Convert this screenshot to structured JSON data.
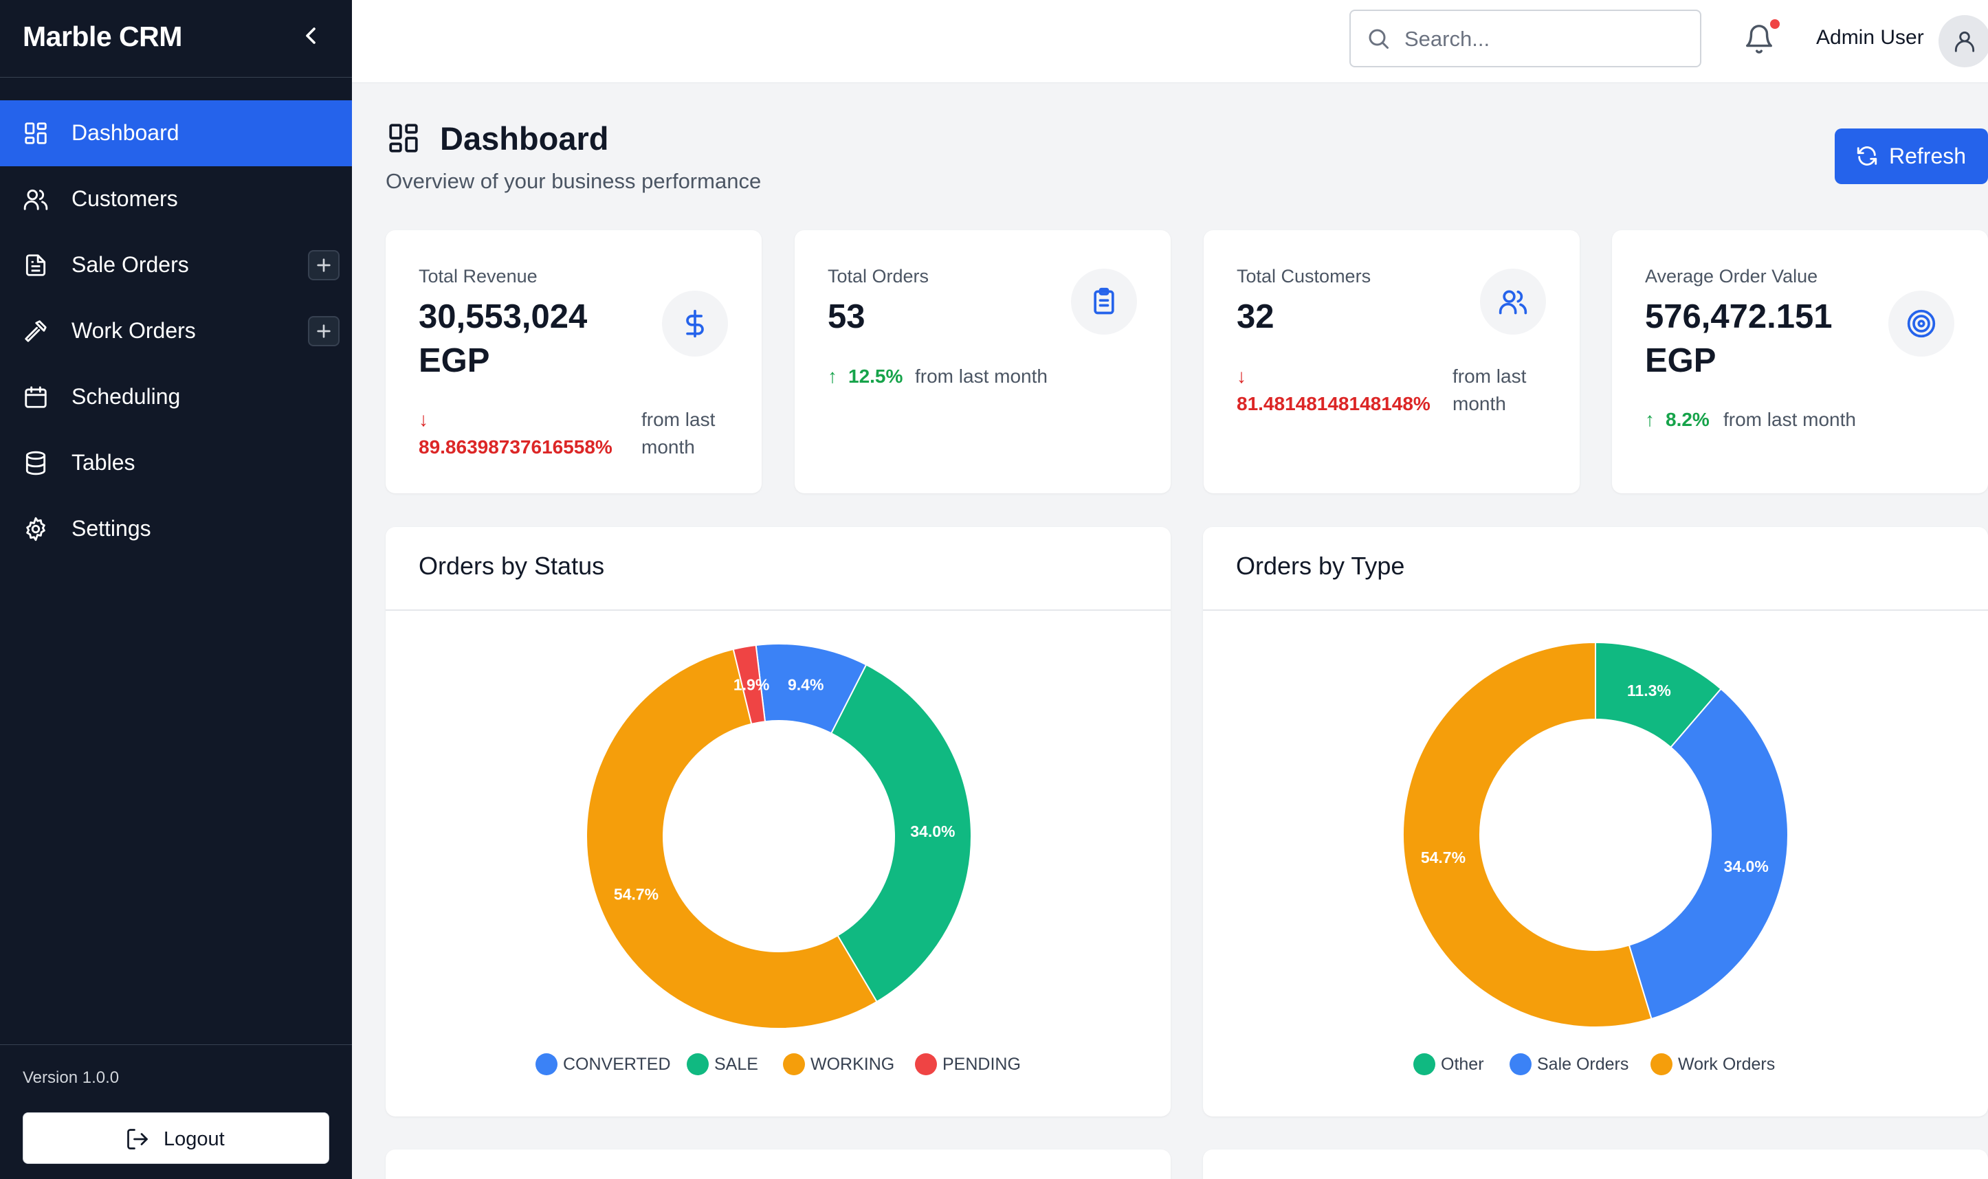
{
  "app": {
    "title": "Marble CRM",
    "version": "Version 1.0.0",
    "logout_label": "Logout"
  },
  "sidebar": {
    "items": [
      {
        "label": "Dashboard",
        "icon": "dashboard-icon",
        "active": true
      },
      {
        "label": "Customers",
        "icon": "users-icon"
      },
      {
        "label": "Sale Orders",
        "icon": "document-icon",
        "has_add": true
      },
      {
        "label": "Work Orders",
        "icon": "hammer-icon",
        "has_add": true
      },
      {
        "label": "Scheduling",
        "icon": "calendar-icon"
      },
      {
        "label": "Tables",
        "icon": "database-icon"
      },
      {
        "label": "Settings",
        "icon": "gear-icon"
      }
    ]
  },
  "header": {
    "search_placeholder": "Search...",
    "user_name": "Admin User",
    "notification_dot_color": "#ef4444"
  },
  "page": {
    "title": "Dashboard",
    "subtitle": "Overview of your business performance",
    "refresh_label": "Refresh"
  },
  "stats": [
    {
      "label": "Total Revenue",
      "value": "30,553,024 EGP",
      "trend_arrow": "↓",
      "trend_pct": "89.86398737616558%",
      "trend_dir": "down",
      "trend_note": "from last month",
      "icon": "dollar-icon"
    },
    {
      "label": "Total Orders",
      "value": "53",
      "trend_arrow": "↑",
      "trend_pct": "12.5%",
      "trend_dir": "up",
      "trend_note": "from last month",
      "icon": "clipboard-icon"
    },
    {
      "label": "Total Customers",
      "value": "32",
      "trend_arrow": "↓",
      "trend_pct": "81.48148148148148%",
      "trend_dir": "down",
      "trend_note": "from last month",
      "icon": "users-icon"
    },
    {
      "label": "Average Order Value",
      "value": "576,472.151 EGP",
      "trend_arrow": "↑",
      "trend_pct": "8.2%",
      "trend_dir": "up",
      "trend_note": "from last month",
      "icon": "target-icon"
    }
  ],
  "colors": {
    "accent": "#2563eb",
    "sidebar_bg": "#111827",
    "up": "#16a34a",
    "down": "#dc2626"
  },
  "chart_data": [
    {
      "type": "pie",
      "title": "Orders by Status",
      "categories": [
        "CONVERTED",
        "SALE",
        "WORKING",
        "PENDING"
      ],
      "values": [
        9.4,
        34.0,
        54.7,
        1.9
      ],
      "labels": [
        "9.4%",
        "34.0%",
        "54.7%",
        "1.9%"
      ],
      "colors": [
        "#3b82f6",
        "#10b981",
        "#f59e0b",
        "#ef4444"
      ],
      "legend": "bottom"
    },
    {
      "type": "pie",
      "title": "Orders by Type",
      "categories": [
        "Other",
        "Sale Orders",
        "Work Orders"
      ],
      "values": [
        11.3,
        34.0,
        54.7
      ],
      "labels": [
        "11.3%",
        "34.0%",
        "54.7%"
      ],
      "colors": [
        "#10b981",
        "#3b82f6",
        "#f59e0b"
      ],
      "legend": "bottom"
    }
  ]
}
